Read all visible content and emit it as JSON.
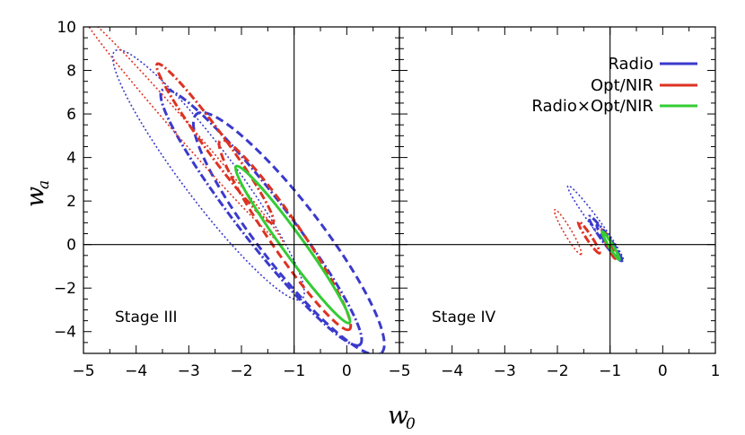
{
  "chart_data": {
    "type": "contour",
    "xlabel": "w",
    "xlabel_subscript": "0",
    "ylabel": "w",
    "ylabel_subscript": "a",
    "colors": {
      "Radio": "#3a3acc",
      "Opt/NIR": "#dd3322",
      "Radio×Opt/NIR": "#33cc33"
    },
    "legend": [
      {
        "label": "Radio",
        "color": "#3a3acc"
      },
      {
        "label": "Opt/NIR",
        "color": "#dd3322"
      },
      {
        "label": "Radio×Opt/NIR",
        "color": "#33cc33"
      }
    ],
    "panels": [
      {
        "name": "Stage III",
        "annotation": "Stage III",
        "xlim": [
          -5,
          1
        ],
        "ylim": [
          -5,
          10
        ],
        "x_ticks": [
          "−5",
          "−4",
          "−3",
          "−2",
          "−1",
          "0"
        ],
        "y_ticks": [
          "−4",
          "−2",
          "0",
          "2",
          "4",
          "6",
          "8",
          "10"
        ],
        "fiducial": {
          "w0": -1,
          "wa": 0
        },
        "ellipses": [
          {
            "series": "Radio",
            "cl": "68%",
            "style": "dashed",
            "tips": [
              [
                -2.85,
                6.0
              ],
              [
                0.65,
                -5.0
              ]
            ],
            "width": 1.2,
            "clip": true
          },
          {
            "series": "Radio",
            "cl": "95%",
            "style": "dashdot",
            "tips": [
              [
                -3.5,
                7.1
              ],
              [
                0.25,
                -4.6
              ]
            ],
            "width": 0.9
          },
          {
            "series": "Radio",
            "cl": "99%",
            "style": "dotted",
            "tips": [
              [
                -4.4,
                8.9
              ],
              [
                -0.85,
                -2.5
              ]
            ],
            "width": 1.0
          },
          {
            "series": "Opt/NIR",
            "cl": "68%",
            "style": "dashed",
            "tips": [
              [
                -2.4,
                4.8
              ],
              [
                0.05,
                -3.9
              ]
            ],
            "width": 0.6
          },
          {
            "series": "Opt/NIR",
            "cl": "95%",
            "style": "dashdot",
            "tips": [
              [
                -3.6,
                8.3
              ],
              [
                -1.4,
                1.0
              ]
            ],
            "width": 0.4
          },
          {
            "series": "Opt/NIR",
            "cl": "99%",
            "style": "dotted",
            "tips": [
              [
                -5.0,
                10.5
              ],
              [
                -1.2,
                0.0
              ]
            ],
            "width": 0.3,
            "clip": true
          },
          {
            "series": "Radio×Opt/NIR",
            "cl": "68%",
            "style": "solid",
            "tips": [
              [
                -2.1,
                3.6
              ],
              [
                0.05,
                -3.6
              ]
            ],
            "width": 0.4
          }
        ]
      },
      {
        "name": "Stage IV",
        "annotation": "Stage IV",
        "xlim": [
          -5,
          1
        ],
        "ylim": [
          -5,
          10
        ],
        "x_ticks": [
          "−5",
          "−4",
          "−3",
          "−2",
          "−1",
          "0",
          "1"
        ],
        "y_ticks": [],
        "fiducial": {
          "w0": -1,
          "wa": 0
        },
        "ellipses": [
          {
            "series": "Radio",
            "cl": "99%",
            "style": "dotted",
            "tips": [
              [
                -1.8,
                2.7
              ],
              [
                -0.75,
                -0.75
              ]
            ],
            "width": 0.18
          },
          {
            "series": "Radio",
            "cl": "95%",
            "style": "dashdot",
            "tips": [
              [
                -1.4,
                1.3
              ],
              [
                -0.78,
                -0.75
              ]
            ],
            "width": 0.14
          },
          {
            "series": "Radio",
            "cl": "68%",
            "style": "dashed",
            "tips": [
              [
                -1.25,
                0.9
              ],
              [
                -0.8,
                -0.7
              ]
            ],
            "width": 0.1
          },
          {
            "series": "Opt/NIR",
            "cl": "99%",
            "style": "dotted",
            "tips": [
              [
                -2.05,
                1.6
              ],
              [
                -1.55,
                -0.45
              ]
            ],
            "width": 0.14
          },
          {
            "series": "Opt/NIR",
            "cl": "95%",
            "style": "dashdot",
            "tips": [
              [
                -1.6,
                1.05
              ],
              [
                -1.2,
                -0.4
              ]
            ],
            "width": 0.1
          },
          {
            "series": "Opt/NIR",
            "cl": "68%",
            "style": "dashed",
            "tips": [
              [
                -1.15,
                0.7
              ],
              [
                -0.9,
                -0.65
              ]
            ],
            "width": 0.08
          },
          {
            "series": "Radio×Opt/NIR",
            "cl": "68%",
            "style": "solid",
            "tips": [
              [
                -1.15,
                0.6
              ],
              [
                -0.82,
                -0.7
              ]
            ],
            "width": 0.06
          }
        ]
      }
    ]
  }
}
